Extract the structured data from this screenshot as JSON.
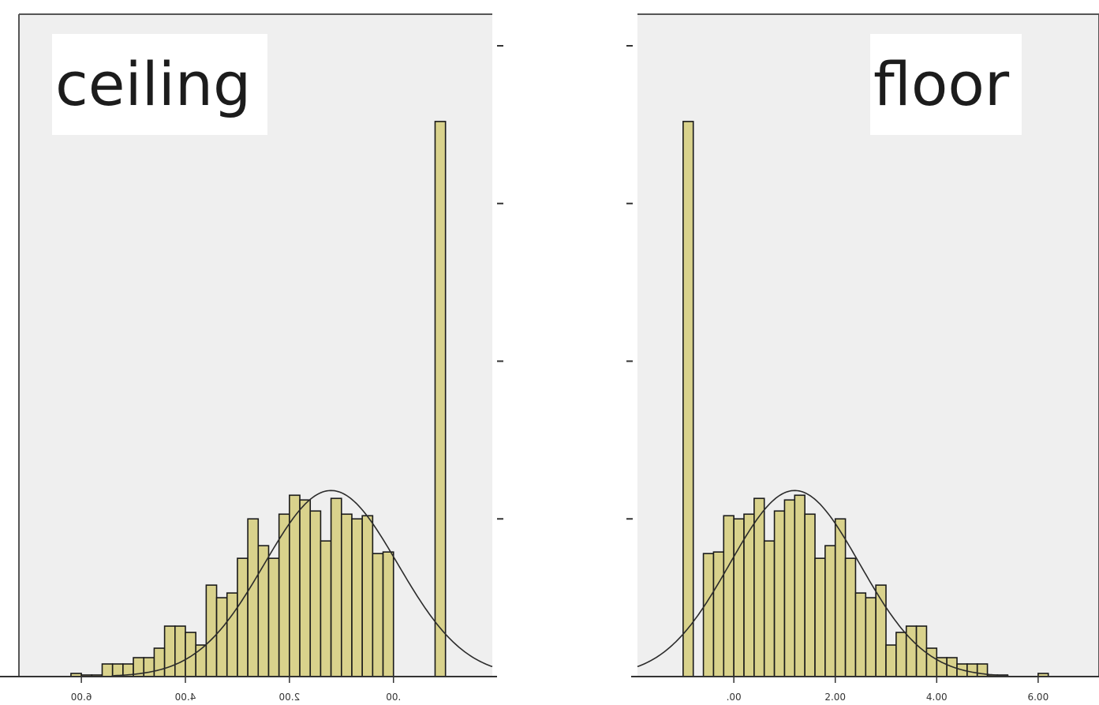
{
  "colors": {
    "plot_background": "#efefef",
    "bar_fill": "#d9d28c",
    "bar_stroke": "#1a1a1a",
    "curve": "#2b2b2b",
    "title_background": "#ffffff"
  },
  "chart_data": [
    {
      "type": "bar",
      "subtype": "histogram",
      "title": "ceiling",
      "mirrored_horizontally": true,
      "normal_curve": true,
      "x_tick_labels": [
        "6.00",
        "4.00",
        "2.00",
        ".00"
      ],
      "x_tick_values": [
        6,
        4,
        2,
        0
      ],
      "xlim": [
        7.2,
        -1.9
      ],
      "ylim": [
        0,
        400
      ],
      "y_tick_values": [
        100,
        200,
        300,
        400
      ],
      "y_tick_labels": [],
      "bin_width": 0.2,
      "bin_starts": [
        6.0,
        5.8,
        5.6,
        5.4,
        5.2,
        5.0,
        4.8,
        4.6,
        4.4,
        4.2,
        4.0,
        3.8,
        3.6,
        3.4,
        3.2,
        3.0,
        2.8,
        2.6,
        2.4,
        2.2,
        2.0,
        1.8,
        1.6,
        1.4,
        1.2,
        1.0,
        0.8,
        0.6,
        0.4,
        0.2,
        0.0,
        -0.2,
        -0.4,
        -0.6,
        -1.0
      ],
      "values": [
        2,
        1,
        1,
        8,
        8,
        8,
        12,
        12,
        18,
        32,
        32,
        28,
        20,
        58,
        50,
        53,
        75,
        100,
        83,
        75,
        103,
        115,
        112,
        105,
        86,
        113,
        103,
        100,
        102,
        78,
        79,
        0,
        0,
        0,
        352
      ],
      "curve": {
        "mean": 1.2,
        "sd": 1.28,
        "peak": 118
      }
    },
    {
      "type": "bar",
      "subtype": "histogram",
      "title": "floor",
      "mirrored_horizontally": false,
      "normal_curve": true,
      "x_tick_labels": [
        ".00",
        "2.00",
        "4.00",
        "6.00"
      ],
      "x_tick_values": [
        0,
        2,
        4,
        6
      ],
      "xlim": [
        -1.9,
        7.2
      ],
      "ylim": [
        0,
        400
      ],
      "y_tick_values": [
        100,
        200,
        300,
        400
      ],
      "y_tick_labels": [],
      "bin_width": 0.2,
      "bin_starts": [
        -1.0,
        -0.6,
        -0.4,
        -0.2,
        0.0,
        0.2,
        0.4,
        0.6,
        0.8,
        1.0,
        1.2,
        1.4,
        1.6,
        1.8,
        2.0,
        2.2,
        2.4,
        2.6,
        2.8,
        3.0,
        3.2,
        3.4,
        3.6,
        3.8,
        4.0,
        4.2,
        4.4,
        4.6,
        4.8,
        5.0,
        5.2,
        5.4,
        5.6,
        5.8,
        6.0
      ],
      "values": [
        352,
        78,
        79,
        102,
        100,
        103,
        113,
        86,
        105,
        112,
        115,
        103,
        75,
        83,
        100,
        75,
        53,
        50,
        58,
        20,
        28,
        32,
        32,
        18,
        12,
        12,
        8,
        8,
        8,
        1,
        1,
        0,
        0,
        0,
        2
      ],
      "curve": {
        "mean": 1.2,
        "sd": 1.28,
        "peak": 118
      }
    }
  ]
}
